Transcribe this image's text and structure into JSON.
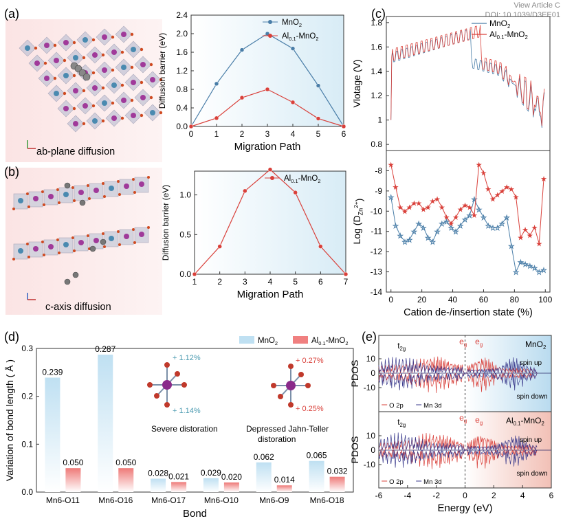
{
  "header": {
    "view_article": "View Article C",
    "doi": "DOI: 10.1039/D3EE01"
  },
  "panels": {
    "a": {
      "label": "(a)",
      "caption": "ab-plane diffusion"
    },
    "b": {
      "label": "(b)",
      "caption": "c-axis diffusion"
    },
    "c": {
      "label": "(c)"
    },
    "d": {
      "label": "(d)",
      "severe_label": "Severe distoration",
      "depressed_label_1": "Depressed Jahn-Teller",
      "depressed_label_2": "distoration",
      "mno2_up": "+ 1.12%",
      "mno2_down": "+ 1.14%",
      "al_up": "+ 0.27%",
      "al_down": "+ 0.25%"
    },
    "e": {
      "label": "(e)"
    }
  },
  "colors": {
    "blue": "#4a7ea8",
    "red": "#d9403a",
    "navy": "#3a3a8c",
    "light_blue": "#bfe0f2",
    "light_red": "#f08080"
  },
  "chart_data": [
    {
      "id": "a",
      "type": "line",
      "xlabel": "Migration Path",
      "ylabel": "Diffusion barrier (eV)",
      "xlim": [
        0,
        6
      ],
      "ylim": [
        0,
        2.4
      ],
      "xticks": [
        "0",
        "1",
        "2",
        "3",
        "4",
        "5",
        "6"
      ],
      "yticks": [
        "0.0",
        "0.4",
        "0.8",
        "1.2",
        "1.6",
        "2.0",
        "2.4"
      ],
      "x": [
        0,
        1,
        2,
        3,
        4,
        5,
        6
      ],
      "series": [
        {
          "name": "MnO",
          "sub": "2",
          "color": "#4a7ea8",
          "values": [
            0.0,
            0.92,
            1.65,
            2.0,
            1.68,
            0.88,
            0.0
          ]
        },
        {
          "name": "Al",
          "sub": "0.1",
          "suffix": "-MnO",
          "sub2": "2",
          "color": "#d9403a",
          "values": [
            0.0,
            0.18,
            0.62,
            0.8,
            0.52,
            0.17,
            0.0
          ]
        }
      ]
    },
    {
      "id": "b",
      "type": "line",
      "xlabel": "Migration Path",
      "ylabel": "Diffusion barrier (eV)",
      "xlim": [
        1,
        7
      ],
      "ylim": [
        0,
        1.3
      ],
      "xticks": [
        "1",
        "2",
        "3",
        "4",
        "5",
        "6",
        "7"
      ],
      "yticks": [
        "0.0",
        "0.5",
        "1.0"
      ],
      "x": [
        1,
        2,
        3,
        4,
        5,
        6,
        7
      ],
      "series": [
        {
          "name": "Al",
          "sub": "0.1",
          "suffix": "-MnO",
          "sub2": "2",
          "color": "#d9403a",
          "values": [
            0.0,
            0.35,
            1.05,
            1.32,
            1.03,
            0.35,
            0.0
          ]
        }
      ]
    },
    {
      "id": "c-top",
      "type": "line",
      "ylabel": "Vlotage (V)",
      "ylim": [
        0.75,
        1.85
      ],
      "xlim": [
        -3,
        103
      ],
      "yticks": [
        "0.8",
        "1",
        "1.2",
        "1.4",
        "1.6",
        "1.8"
      ],
      "series": [
        {
          "name": "MnO",
          "sub": "2",
          "color": "#4a7ea8"
        },
        {
          "name": "Al",
          "sub": "0.1",
          "suffix": "-MnO",
          "sub2": "2",
          "color": "#d9403a"
        }
      ]
    },
    {
      "id": "c-bottom",
      "type": "line",
      "xlabel": "Cation de-/insertion state (%)",
      "ylabel": "Log (D",
      "ylabel_sub": "Zn",
      "ylabel_sup": "2+",
      "ylim": [
        -14,
        -7
      ],
      "xlim": [
        -3,
        103
      ],
      "xticks": [
        "0",
        "20",
        "40",
        "60",
        "80",
        "100"
      ],
      "yticks": [
        "-14",
        "-13",
        "-12",
        "-11",
        "-10",
        "-9",
        "-8"
      ],
      "series": [
        {
          "name": "MnO2",
          "color": "#4a7ea8",
          "x": [
            0,
            3,
            6,
            9,
            12,
            15,
            18,
            21,
            24,
            27,
            30,
            33,
            36,
            39,
            42,
            45,
            48,
            51,
            54,
            57,
            60,
            63,
            66,
            69,
            72,
            75,
            78,
            81,
            84,
            87,
            90,
            93,
            96,
            99
          ],
          "values": [
            -9.3,
            -10.7,
            -11.2,
            -11.5,
            -11.4,
            -11.0,
            -10.6,
            -10.8,
            -11.3,
            -11.5,
            -11.0,
            -10.6,
            -10.5,
            -10.8,
            -11.0,
            -10.7,
            -10.4,
            -10.2,
            -9.4,
            -9.9,
            -10.3,
            -10.7,
            -10.8,
            -10.8,
            -10.6,
            -10.3,
            -11.7,
            -13.0,
            -12.5,
            -12.6,
            -12.7,
            -12.8,
            -13.0,
            -12.9
          ]
        },
        {
          "name": "Al0.1-MnO2",
          "color": "#d9403a",
          "x": [
            0,
            3,
            6,
            9,
            12,
            15,
            18,
            21,
            24,
            27,
            30,
            33,
            36,
            39,
            42,
            45,
            48,
            51,
            54,
            57,
            60,
            63,
            66,
            69,
            72,
            75,
            78,
            81,
            84,
            87,
            90,
            93,
            96,
            99
          ],
          "values": [
            -7.7,
            -8.8,
            -9.8,
            -10.0,
            -9.8,
            -9.6,
            -9.6,
            -9.9,
            -9.8,
            -9.5,
            -9.4,
            -9.8,
            -10.3,
            -10.6,
            -10.3,
            -9.9,
            -9.7,
            -9.8,
            -10.2,
            -7.7,
            -8.1,
            -8.9,
            -9.4,
            -9.2,
            -9.0,
            -8.8,
            -8.9,
            -9.3,
            -11.3,
            -10.9,
            -11.2,
            -10.8,
            -11.6,
            -8.4
          ]
        }
      ]
    },
    {
      "id": "d",
      "type": "bar",
      "xlabel": "Bond",
      "ylabel": "Variation of bond length ( Å )",
      "ylim": [
        0,
        0.3
      ],
      "yticks": [
        "0.0",
        "0.1",
        "0.2",
        "0.3"
      ],
      "categories": [
        "Mn6-O11",
        "Mn6-O16",
        "Mn6-O17",
        "Mn6-O10",
        "Mn6-O9",
        "Mn6-O18"
      ],
      "series": [
        {
          "name": "MnO",
          "sub": "2",
          "color": "#bfe0f2",
          "values": [
            0.239,
            0.287,
            0.028,
            0.029,
            0.062,
            0.065
          ],
          "labels": [
            "0.239",
            "0.287",
            "0.028",
            "0.029",
            "0.062",
            "0.065"
          ]
        },
        {
          "name": "Al",
          "sub": "0.1",
          "suffix": "-MnO",
          "sub2": "2",
          "color": "#f08080",
          "values": [
            0.05,
            0.05,
            0.021,
            0.02,
            0.014,
            0.032
          ],
          "labels": [
            "0.050",
            "0.050",
            "0.021",
            "0.020",
            "0.014",
            "0.032"
          ]
        }
      ]
    },
    {
      "id": "e",
      "type": "line",
      "xlabel": "Energy (eV)",
      "ylabel": "PDOS",
      "xlim": [
        -6,
        6
      ],
      "xticks": [
        "-6",
        "-4",
        "-2",
        "0",
        "2",
        "4",
        "6"
      ],
      "yticks": [
        "-10",
        "0",
        "10"
      ],
      "top_title": "MnO",
      "top_title_sub": "2",
      "bottom_title": "Al",
      "bottom_title_sub": "0.1",
      "bottom_title_suffix": "-MnO",
      "bottom_title_sub2": "2",
      "spin_up": "spin up",
      "spin_down": "spin down",
      "t2g": "t",
      "t2g_sub": "2g",
      "eg": "e",
      "eg_sub": "g",
      "legend": [
        {
          "name": "O 2p",
          "color": "#d9403a"
        },
        {
          "name": "Mn 3d",
          "color": "#3a3a8c"
        }
      ]
    }
  ]
}
